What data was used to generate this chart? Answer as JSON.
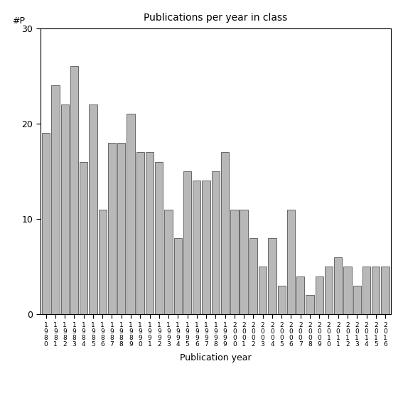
{
  "title": "Publications per year in class",
  "xlabel": "Publication year",
  "ylabel": "#P",
  "ylim": [
    0,
    30
  ],
  "yticks": [
    0,
    10,
    20,
    30
  ],
  "bar_color": "#b8b8b8",
  "bar_edgecolor": "#555555",
  "categories": [
    "1980",
    "1981",
    "1982",
    "1983",
    "1984",
    "1985",
    "1986",
    "1987",
    "1988",
    "1989",
    "1990",
    "1991",
    "1992",
    "1993",
    "1994",
    "1995",
    "1996",
    "1997",
    "1998",
    "1999",
    "2000",
    "2001",
    "2002",
    "2003",
    "2004",
    "2005",
    "2006",
    "2007",
    "2008",
    "2009",
    "2010",
    "2011",
    "2012",
    "2013",
    "2014",
    "2015",
    "2016"
  ],
  "values": [
    19,
    24,
    22,
    26,
    16,
    22,
    11,
    18,
    18,
    21,
    17,
    17,
    16,
    11,
    8,
    15,
    14,
    14,
    15,
    17,
    11,
    11,
    8,
    5,
    8,
    3,
    11,
    4,
    2,
    4,
    5,
    6,
    5,
    3,
    5,
    5,
    5
  ],
  "figsize": [
    5.67,
    5.67
  ],
  "dpi": 100
}
